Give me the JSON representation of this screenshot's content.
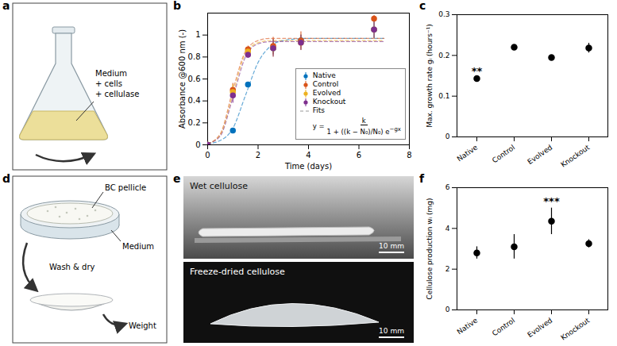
{
  "chart_data": [
    {
      "type": "line",
      "panel_label": "b",
      "x_label": "Time (days)",
      "y_label": "Absorbance @600 nm (-)",
      "x": [
        0,
        1,
        1.6,
        2.6,
        3.7,
        6.6
      ],
      "xlim": [
        0,
        8
      ],
      "xticks": [
        0,
        2,
        4,
        6,
        8
      ],
      "ylim": [
        0,
        1.2
      ],
      "yticks": [
        0,
        0.2,
        0.4,
        0.6,
        0.8,
        1
      ],
      "legend": "bottom-right",
      "marker": "circle",
      "series": [
        {
          "name": "Native",
          "color": "#0072BD",
          "values": [
            0,
            0.13,
            0.55,
            0.88,
            0.95,
            1.05
          ],
          "errors": [
            0,
            0.01,
            0.02,
            0.06,
            0.05,
            0.08
          ],
          "fit": [
            0.01,
            0.04,
            0.15,
            0.45,
            0.75,
            0.9,
            0.95,
            0.97,
            0.97,
            0.97,
            0.97
          ]
        },
        {
          "name": "Control",
          "color": "#D95319",
          "values": [
            0,
            0.5,
            0.87,
            0.9,
            0.95,
            1.15
          ],
          "errors": [
            0,
            0.06,
            0.03,
            0.08,
            0.08,
            0.03
          ],
          "fit": [
            0.01,
            0.1,
            0.5,
            0.85,
            0.95,
            0.97,
            0.97,
            0.97,
            0.97,
            0.97,
            0.97
          ]
        },
        {
          "name": "Evolved",
          "color": "#EDB120",
          "values": [
            0,
            0.48,
            0.85,
            0.88,
            0.93,
            1.05
          ],
          "errors": [
            0,
            0.07,
            0.03,
            0.08,
            0.07,
            0.08
          ],
          "fit": [
            0.01,
            0.09,
            0.46,
            0.83,
            0.93,
            0.95,
            0.95,
            0.95,
            0.95,
            0.95,
            0.95
          ]
        },
        {
          "name": "Knockout",
          "color": "#7E2F8E",
          "values": [
            0,
            0.45,
            0.82,
            0.88,
            0.93,
            1.05
          ],
          "errors": [
            0,
            0.07,
            0.03,
            0.08,
            0.07,
            0.08
          ],
          "fit": [
            0.01,
            0.08,
            0.43,
            0.8,
            0.92,
            0.94,
            0.94,
            0.94,
            0.94,
            0.94,
            0.94
          ]
        }
      ],
      "fits": {
        "name": "Fits",
        "color": "#999999",
        "line_style": "dashed",
        "x": [
          0,
          0.5,
          1,
          1.5,
          2,
          2.5,
          3,
          4,
          5,
          6,
          7
        ],
        "formula": {
          "lhs": "y =",
          "numerator": "k",
          "denominator": "1 + ((k − N₀)/N₀) e",
          "exponent": "−gx"
        }
      }
    },
    {
      "type": "scatter",
      "panel_label": "c",
      "y_label": "Max. growth rate gᵢ (hours⁻¹)",
      "categories": [
        "Native",
        "Control",
        "Evolved",
        "Knockout"
      ],
      "values": [
        0.143,
        0.22,
        0.195,
        0.218
      ],
      "errors": [
        0.003,
        0.003,
        0.002,
        0.012
      ],
      "ylim": [
        0,
        0.3
      ],
      "yticks": [
        0,
        0.1,
        0.2,
        0.3
      ],
      "color": "#000000",
      "marker": "circle",
      "annotations": [
        {
          "category": "Native",
          "text": "**"
        }
      ]
    },
    {
      "type": "scatter",
      "panel_label": "f",
      "y_label": "Cellulose production wᵢ (mg)",
      "categories": [
        "Native",
        "Control",
        "Evolved",
        "Knockout"
      ],
      "values": [
        2.8,
        3.1,
        4.35,
        3.25
      ],
      "errors": [
        0.3,
        0.6,
        0.65,
        0.2
      ],
      "ylim": [
        0,
        6
      ],
      "yticks": [
        0,
        2,
        4,
        6
      ],
      "color": "#000000",
      "marker": "circle",
      "annotations": [
        {
          "category": "Evolved",
          "text": "***"
        }
      ]
    }
  ],
  "illustrations": {
    "a": {
      "panel_label": "a",
      "label_lines": [
        "Medium",
        "+ cells",
        "+ cellulase"
      ]
    },
    "d": {
      "panel_label": "d",
      "pellicle": "BC pellicle",
      "medium": "Medium",
      "step": "Wash & dry",
      "result": "Weight"
    },
    "e": {
      "panel_label": "e",
      "photos": [
        {
          "title": "Wet cellulose",
          "scale_bar": "10 mm"
        },
        {
          "title": "Freeze-dried cellulose",
          "scale_bar": "10 mm"
        }
      ]
    }
  }
}
